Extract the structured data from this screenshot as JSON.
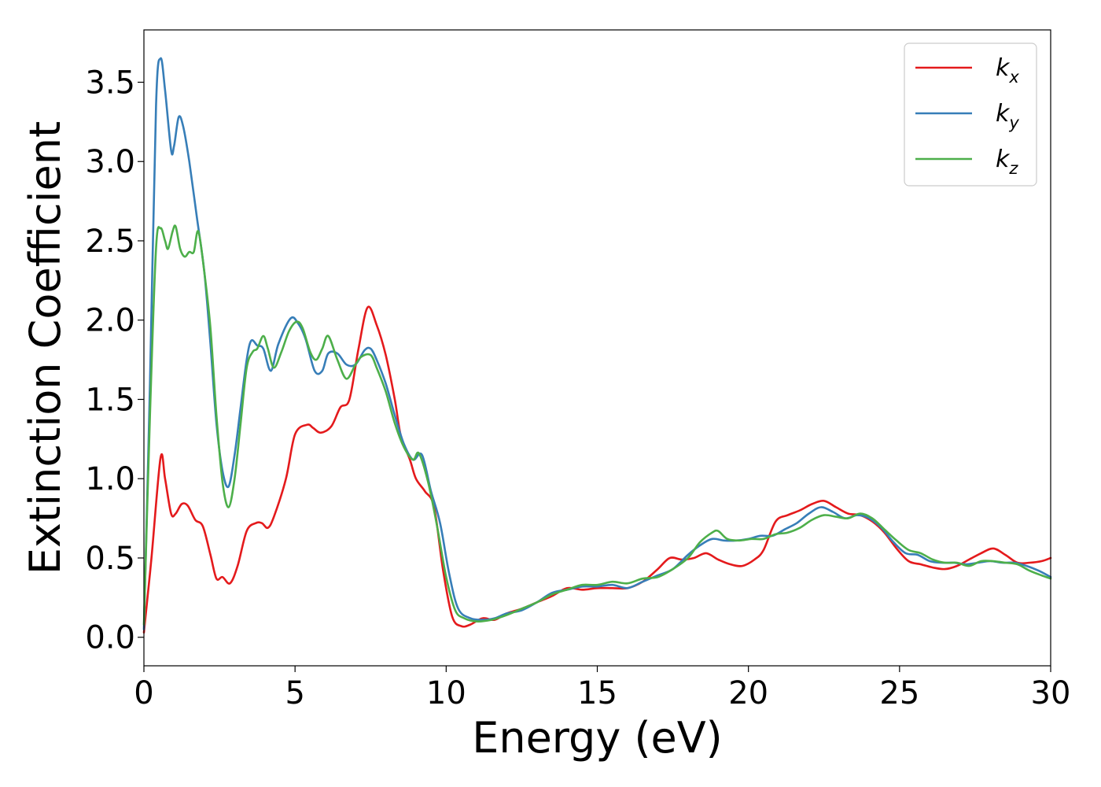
{
  "chart_data": {
    "type": "line",
    "xlabel": "Energy (eV)",
    "ylabel": "Extinction Coefficient",
    "xlim": [
      0,
      30
    ],
    "ylim": [
      -0.18,
      3.83
    ],
    "x_ticks": [
      0,
      5,
      10,
      15,
      20,
      25,
      30
    ],
    "y_ticks": [
      0.0,
      0.5,
      1.0,
      1.5,
      2.0,
      2.5,
      3.0,
      3.5
    ],
    "grid": false,
    "legend_position": "top-right",
    "series": [
      {
        "name": "k",
        "subscript": "x",
        "color": "#e41a1c",
        "points": [
          [
            0,
            0.03
          ],
          [
            0.25,
            0.5
          ],
          [
            0.55,
            1.13
          ],
          [
            0.7,
            1.0
          ],
          [
            0.9,
            0.78
          ],
          [
            1.05,
            0.78
          ],
          [
            1.25,
            0.84
          ],
          [
            1.45,
            0.83
          ],
          [
            1.7,
            0.74
          ],
          [
            1.95,
            0.7
          ],
          [
            2.2,
            0.52
          ],
          [
            2.4,
            0.37
          ],
          [
            2.6,
            0.38
          ],
          [
            2.85,
            0.34
          ],
          [
            3.1,
            0.45
          ],
          [
            3.4,
            0.67
          ],
          [
            3.7,
            0.72
          ],
          [
            3.9,
            0.72
          ],
          [
            4.1,
            0.69
          ],
          [
            4.3,
            0.76
          ],
          [
            4.7,
            1.0
          ],
          [
            5.0,
            1.28
          ],
          [
            5.4,
            1.34
          ],
          [
            5.6,
            1.32
          ],
          [
            5.85,
            1.29
          ],
          [
            6.2,
            1.33
          ],
          [
            6.5,
            1.45
          ],
          [
            6.8,
            1.5
          ],
          [
            7.1,
            1.82
          ],
          [
            7.4,
            2.08
          ],
          [
            7.7,
            1.97
          ],
          [
            8.0,
            1.78
          ],
          [
            8.3,
            1.5
          ],
          [
            8.5,
            1.27
          ],
          [
            8.8,
            1.12
          ],
          [
            9.0,
            1.0
          ],
          [
            9.3,
            0.92
          ],
          [
            9.6,
            0.82
          ],
          [
            9.9,
            0.42
          ],
          [
            10.2,
            0.13
          ],
          [
            10.5,
            0.07
          ],
          [
            10.8,
            0.08
          ],
          [
            11.2,
            0.12
          ],
          [
            11.6,
            0.11
          ],
          [
            12.0,
            0.15
          ],
          [
            12.5,
            0.18
          ],
          [
            13.0,
            0.22
          ],
          [
            13.5,
            0.26
          ],
          [
            14.0,
            0.31
          ],
          [
            14.5,
            0.3
          ],
          [
            15.0,
            0.31
          ],
          [
            15.5,
            0.31
          ],
          [
            16.0,
            0.31
          ],
          [
            16.5,
            0.35
          ],
          [
            17.0,
            0.43
          ],
          [
            17.4,
            0.5
          ],
          [
            17.8,
            0.49
          ],
          [
            18.2,
            0.5
          ],
          [
            18.6,
            0.53
          ],
          [
            19.0,
            0.49
          ],
          [
            19.4,
            0.46
          ],
          [
            19.8,
            0.45
          ],
          [
            20.2,
            0.49
          ],
          [
            20.5,
            0.55
          ],
          [
            20.9,
            0.73
          ],
          [
            21.3,
            0.77
          ],
          [
            21.7,
            0.8
          ],
          [
            22.1,
            0.84
          ],
          [
            22.5,
            0.86
          ],
          [
            22.9,
            0.82
          ],
          [
            23.3,
            0.78
          ],
          [
            23.7,
            0.77
          ],
          [
            24.1,
            0.73
          ],
          [
            24.5,
            0.66
          ],
          [
            24.9,
            0.56
          ],
          [
            25.3,
            0.48
          ],
          [
            25.7,
            0.46
          ],
          [
            26.1,
            0.44
          ],
          [
            26.5,
            0.43
          ],
          [
            26.9,
            0.45
          ],
          [
            27.3,
            0.49
          ],
          [
            27.7,
            0.53
          ],
          [
            28.1,
            0.56
          ],
          [
            28.5,
            0.52
          ],
          [
            28.9,
            0.47
          ],
          [
            29.3,
            0.47
          ],
          [
            29.7,
            0.48
          ],
          [
            30.0,
            0.5
          ]
        ]
      },
      {
        "name": "k",
        "subscript": "y",
        "color": "#377eb8",
        "points": [
          [
            0,
            0.05
          ],
          [
            0.2,
            1.6
          ],
          [
            0.4,
            3.35
          ],
          [
            0.55,
            3.65
          ],
          [
            0.7,
            3.45
          ],
          [
            0.9,
            3.07
          ],
          [
            1.0,
            3.1
          ],
          [
            1.15,
            3.28
          ],
          [
            1.3,
            3.22
          ],
          [
            1.5,
            3.0
          ],
          [
            1.75,
            2.65
          ],
          [
            2.0,
            2.3
          ],
          [
            2.2,
            1.85
          ],
          [
            2.4,
            1.35
          ],
          [
            2.6,
            1.05
          ],
          [
            2.8,
            0.95
          ],
          [
            3.0,
            1.15
          ],
          [
            3.2,
            1.45
          ],
          [
            3.4,
            1.75
          ],
          [
            3.55,
            1.87
          ],
          [
            3.75,
            1.84
          ],
          [
            3.95,
            1.82
          ],
          [
            4.2,
            1.68
          ],
          [
            4.45,
            1.85
          ],
          [
            4.85,
            2.01
          ],
          [
            5.1,
            1.98
          ],
          [
            5.35,
            1.88
          ],
          [
            5.65,
            1.68
          ],
          [
            5.9,
            1.68
          ],
          [
            6.1,
            1.79
          ],
          [
            6.4,
            1.79
          ],
          [
            6.7,
            1.72
          ],
          [
            7.0,
            1.72
          ],
          [
            7.3,
            1.81
          ],
          [
            7.5,
            1.82
          ],
          [
            7.7,
            1.75
          ],
          [
            8.0,
            1.6
          ],
          [
            8.3,
            1.4
          ],
          [
            8.6,
            1.22
          ],
          [
            8.9,
            1.12
          ],
          [
            9.2,
            1.15
          ],
          [
            9.5,
            0.92
          ],
          [
            9.8,
            0.72
          ],
          [
            10.1,
            0.4
          ],
          [
            10.4,
            0.18
          ],
          [
            10.8,
            0.12
          ],
          [
            11.2,
            0.11
          ],
          [
            11.6,
            0.12
          ],
          [
            12.0,
            0.15
          ],
          [
            12.5,
            0.17
          ],
          [
            13.0,
            0.22
          ],
          [
            13.5,
            0.28
          ],
          [
            14.0,
            0.3
          ],
          [
            14.5,
            0.32
          ],
          [
            15.0,
            0.32
          ],
          [
            15.5,
            0.33
          ],
          [
            16.0,
            0.31
          ],
          [
            16.5,
            0.35
          ],
          [
            17.0,
            0.39
          ],
          [
            17.5,
            0.43
          ],
          [
            18.0,
            0.52
          ],
          [
            18.4,
            0.58
          ],
          [
            18.8,
            0.62
          ],
          [
            19.2,
            0.61
          ],
          [
            19.6,
            0.61
          ],
          [
            20.0,
            0.62
          ],
          [
            20.4,
            0.64
          ],
          [
            20.8,
            0.64
          ],
          [
            21.2,
            0.68
          ],
          [
            21.6,
            0.72
          ],
          [
            22.0,
            0.78
          ],
          [
            22.4,
            0.82
          ],
          [
            22.8,
            0.79
          ],
          [
            23.2,
            0.75
          ],
          [
            23.6,
            0.77
          ],
          [
            24.0,
            0.75
          ],
          [
            24.4,
            0.69
          ],
          [
            24.8,
            0.6
          ],
          [
            25.2,
            0.53
          ],
          [
            25.6,
            0.52
          ],
          [
            26.0,
            0.48
          ],
          [
            26.4,
            0.47
          ],
          [
            26.8,
            0.47
          ],
          [
            27.2,
            0.46
          ],
          [
            27.6,
            0.47
          ],
          [
            28.0,
            0.48
          ],
          [
            28.4,
            0.47
          ],
          [
            28.8,
            0.47
          ],
          [
            29.2,
            0.45
          ],
          [
            29.6,
            0.42
          ],
          [
            30.0,
            0.38
          ]
        ]
      },
      {
        "name": "k",
        "subscript": "z",
        "color": "#4daf4a",
        "points": [
          [
            0,
            0.08
          ],
          [
            0.2,
            1.4
          ],
          [
            0.4,
            2.45
          ],
          [
            0.55,
            2.58
          ],
          [
            0.7,
            2.5
          ],
          [
            0.8,
            2.45
          ],
          [
            0.95,
            2.56
          ],
          [
            1.05,
            2.59
          ],
          [
            1.2,
            2.45
          ],
          [
            1.35,
            2.4
          ],
          [
            1.5,
            2.43
          ],
          [
            1.65,
            2.43
          ],
          [
            1.8,
            2.56
          ],
          [
            2.0,
            2.3
          ],
          [
            2.2,
            1.95
          ],
          [
            2.4,
            1.4
          ],
          [
            2.6,
            0.98
          ],
          [
            2.8,
            0.82
          ],
          [
            3.0,
            1.0
          ],
          [
            3.2,
            1.35
          ],
          [
            3.4,
            1.7
          ],
          [
            3.6,
            1.8
          ],
          [
            3.75,
            1.82
          ],
          [
            3.95,
            1.9
          ],
          [
            4.1,
            1.82
          ],
          [
            4.3,
            1.7
          ],
          [
            4.55,
            1.8
          ],
          [
            4.8,
            1.93
          ],
          [
            5.05,
            1.99
          ],
          [
            5.25,
            1.95
          ],
          [
            5.5,
            1.8
          ],
          [
            5.7,
            1.75
          ],
          [
            5.9,
            1.82
          ],
          [
            6.1,
            1.9
          ],
          [
            6.4,
            1.75
          ],
          [
            6.7,
            1.63
          ],
          [
            7.0,
            1.72
          ],
          [
            7.2,
            1.77
          ],
          [
            7.5,
            1.78
          ],
          [
            7.7,
            1.7
          ],
          [
            8.0,
            1.55
          ],
          [
            8.3,
            1.35
          ],
          [
            8.6,
            1.2
          ],
          [
            8.9,
            1.12
          ],
          [
            9.1,
            1.16
          ],
          [
            9.4,
            0.98
          ],
          [
            9.7,
            0.7
          ],
          [
            10.0,
            0.38
          ],
          [
            10.3,
            0.17
          ],
          [
            10.6,
            0.12
          ],
          [
            11.0,
            0.1
          ],
          [
            11.5,
            0.11
          ],
          [
            12.0,
            0.14
          ],
          [
            12.5,
            0.18
          ],
          [
            13.0,
            0.22
          ],
          [
            13.5,
            0.27
          ],
          [
            14.0,
            0.3
          ],
          [
            14.5,
            0.33
          ],
          [
            15.0,
            0.33
          ],
          [
            15.5,
            0.35
          ],
          [
            16.0,
            0.34
          ],
          [
            16.5,
            0.37
          ],
          [
            17.0,
            0.38
          ],
          [
            17.5,
            0.43
          ],
          [
            18.0,
            0.5
          ],
          [
            18.4,
            0.6
          ],
          [
            18.8,
            0.66
          ],
          [
            19.0,
            0.67
          ],
          [
            19.3,
            0.62
          ],
          [
            19.7,
            0.61
          ],
          [
            20.1,
            0.62
          ],
          [
            20.5,
            0.62
          ],
          [
            20.9,
            0.65
          ],
          [
            21.3,
            0.66
          ],
          [
            21.7,
            0.69
          ],
          [
            22.1,
            0.74
          ],
          [
            22.5,
            0.77
          ],
          [
            22.9,
            0.76
          ],
          [
            23.3,
            0.75
          ],
          [
            23.7,
            0.78
          ],
          [
            24.1,
            0.75
          ],
          [
            24.5,
            0.68
          ],
          [
            24.9,
            0.61
          ],
          [
            25.3,
            0.55
          ],
          [
            25.7,
            0.53
          ],
          [
            26.1,
            0.49
          ],
          [
            26.5,
            0.47
          ],
          [
            26.9,
            0.47
          ],
          [
            27.3,
            0.45
          ],
          [
            27.7,
            0.48
          ],
          [
            28.1,
            0.48
          ],
          [
            28.5,
            0.47
          ],
          [
            28.9,
            0.46
          ],
          [
            29.3,
            0.42
          ],
          [
            29.7,
            0.39
          ],
          [
            30.0,
            0.37
          ]
        ]
      }
    ]
  }
}
